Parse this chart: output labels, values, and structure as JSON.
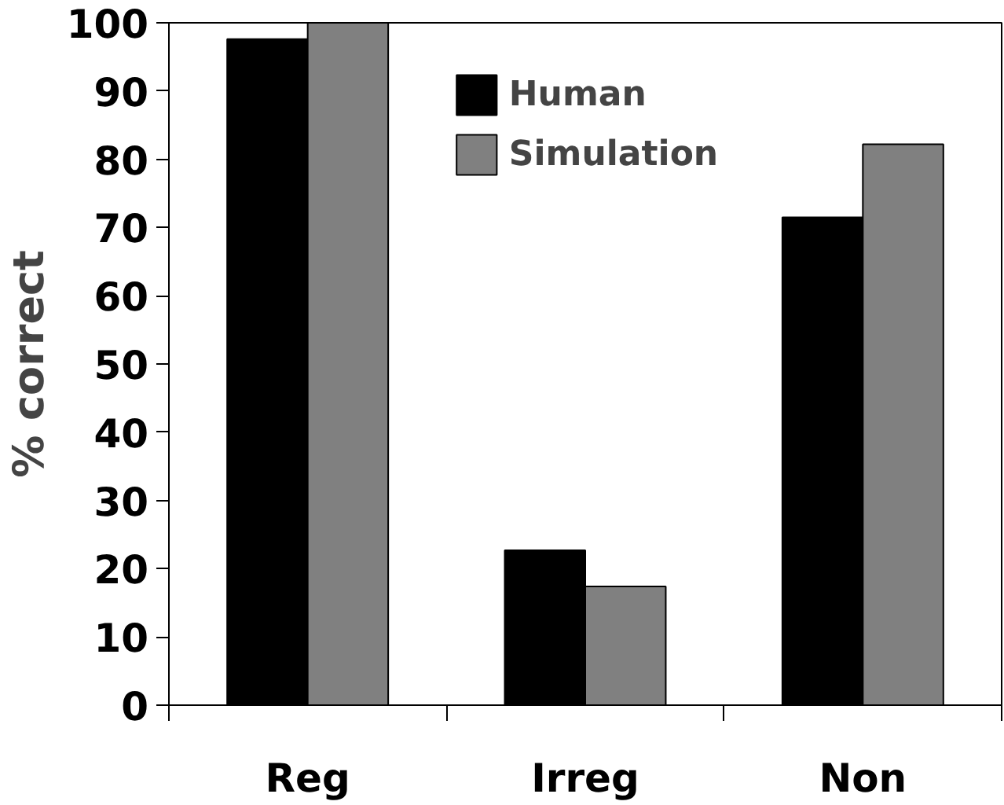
{
  "chart_data": {
    "type": "bar",
    "ylabel": "% correct",
    "categories": [
      "Reg",
      "Irreg",
      "Non"
    ],
    "series": [
      {
        "name": "Human",
        "color": "#000000",
        "values": [
          97.6,
          22.7,
          71.5
        ]
      },
      {
        "name": "Simulation",
        "color": "#808080",
        "values": [
          100,
          17.4,
          82.2
        ]
      }
    ],
    "ylim": [
      0,
      100
    ],
    "yticks": [
      0,
      10,
      20,
      30,
      40,
      50,
      60,
      70,
      80,
      90,
      100
    ],
    "grid": false,
    "legend": "top"
  }
}
